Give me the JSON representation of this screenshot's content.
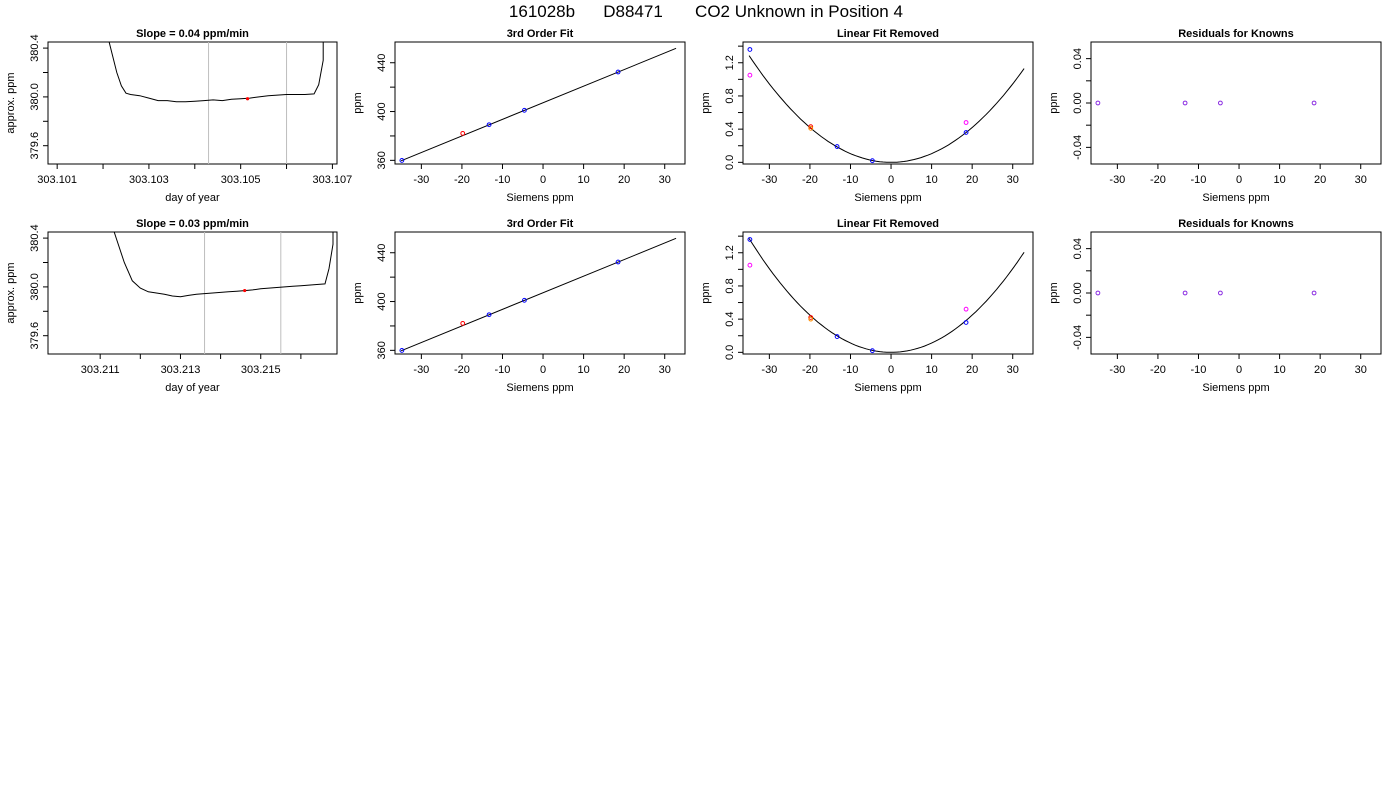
{
  "figure": {
    "title_batch": "161028b",
    "title_tank": "D88471",
    "title_desc": "CO2 Unknown in Position  4"
  },
  "colors": {
    "line": "#000000",
    "marker_red": "#ff0000",
    "marker_blue": "#0000ff",
    "marker_magenta": "#ff00ff",
    "marker_orange": "#ff8c00",
    "marker_purple": "#8a2be2",
    "vline": "#bebebe"
  },
  "chart_data": [
    {
      "type": "line",
      "title": "Slope =  0.04  ppm/min",
      "xlabel": "day of year",
      "ylabel": "approx. ppm",
      "xlim": [
        303.1008,
        303.1071
      ],
      "ylim": [
        379.45,
        380.45
      ],
      "x_ticks": [
        303.101,
        303.103,
        303.105,
        303.107
      ],
      "x_ticks_minor": [
        303.102,
        303.104,
        303.106
      ],
      "x_tick_labels": [
        "303.101",
        "303.103",
        "303.105",
        "303.107"
      ],
      "y_ticks": [
        379.6,
        380.0,
        380.4
      ],
      "y_ticks_minor": [
        379.8,
        380.2
      ],
      "y_tick_labels": [
        "379.6",
        "380.0",
        "380.4"
      ],
      "vlines": [
        303.1043,
        303.106
      ],
      "trace": [
        [
          303.1021,
          380.5
        ],
        [
          303.1022,
          380.35
        ],
        [
          303.1023,
          380.2
        ],
        [
          303.1024,
          380.09
        ],
        [
          303.1025,
          380.03
        ],
        [
          303.1026,
          380.02
        ],
        [
          303.1028,
          380.01
        ],
        [
          303.103,
          379.99
        ],
        [
          303.1032,
          379.97
        ],
        [
          303.1034,
          379.97
        ],
        [
          303.1036,
          379.96
        ],
        [
          303.1038,
          379.96
        ],
        [
          303.104,
          379.965
        ],
        [
          303.1042,
          379.97
        ],
        [
          303.1044,
          379.975
        ],
        [
          303.1046,
          379.97
        ],
        [
          303.1048,
          379.98
        ],
        [
          303.105,
          379.985
        ],
        [
          303.1052,
          379.99
        ],
        [
          303.1054,
          380.0
        ],
        [
          303.1056,
          380.01
        ],
        [
          303.1058,
          380.015
        ],
        [
          303.106,
          380.02
        ],
        [
          303.1062,
          380.02
        ],
        [
          303.1064,
          380.02
        ],
        [
          303.1066,
          380.025
        ],
        [
          303.1067,
          380.1
        ],
        [
          303.1068,
          380.3
        ],
        [
          303.1068,
          380.5
        ]
      ],
      "marker": [
        303.10515,
        379.985
      ]
    },
    {
      "type": "scatter",
      "title": "3rd Order Fit",
      "xlabel": "Siemens ppm",
      "ylabel": "ppm",
      "xlim": [
        -36.5,
        35
      ],
      "ylim": [
        357,
        457
      ],
      "x_ticks": [
        -30,
        -20,
        -10,
        0,
        10,
        20,
        30
      ],
      "y_ticks": [
        360,
        400,
        440
      ],
      "y_ticks_minor": [
        380,
        420
      ],
      "fit_line": [
        [
          -35,
          359.6
        ],
        [
          32.8,
          451.8
        ]
      ],
      "knowns": [
        {
          "x": -34.8,
          "y": 359.9
        },
        {
          "x": -13.3,
          "y": 389.2
        },
        {
          "x": -4.6,
          "y": 401.0
        },
        {
          "x": 18.5,
          "y": 432.4
        }
      ],
      "unknowns": [
        {
          "x": -19.8,
          "y": 382.1
        }
      ]
    },
    {
      "type": "scatter",
      "title": "Linear Fit Removed",
      "xlabel": "Siemens ppm",
      "ylabel": "ppm",
      "xlim": [
        -36.5,
        35
      ],
      "ylim": [
        -0.02,
        1.45
      ],
      "x_ticks": [
        -30,
        -20,
        -10,
        0,
        10,
        20,
        30
      ],
      "y_ticks": [
        0.0,
        0.4,
        0.8,
        1.2
      ],
      "y_ticks_minor": [
        0.2,
        0.6,
        1.0,
        1.4
      ],
      "y_tick_labels": [
        "0.0",
        "0.4",
        "0.8",
        "1.2"
      ],
      "curve_coeff": 0.00105,
      "curve_xrange": [
        -35,
        32.8
      ],
      "knowns_blue": [
        {
          "x": -34.8,
          "y": 1.36
        },
        {
          "x": -13.3,
          "y": 0.19
        },
        {
          "x": -4.6,
          "y": 0.02
        },
        {
          "x": 18.5,
          "y": 0.36
        }
      ],
      "knowns_magenta": [
        {
          "x": -34.8,
          "y": 1.05
        },
        {
          "x": 18.5,
          "y": 0.48
        }
      ],
      "unknowns_red": [
        {
          "x": -19.8,
          "y": 0.43
        }
      ],
      "unknowns_orange": [
        {
          "x": -19.8,
          "y": 0.41
        }
      ]
    },
    {
      "type": "scatter",
      "title": "Residuals for Knowns",
      "xlabel": "Siemens ppm",
      "ylabel": "ppm",
      "xlim": [
        -36.5,
        35
      ],
      "ylim": [
        -0.055,
        0.055
      ],
      "x_ticks": [
        -30,
        -20,
        -10,
        0,
        10,
        20,
        30
      ],
      "y_ticks": [
        -0.04,
        0.0,
        0.04
      ],
      "y_ticks_minor": [
        -0.02,
        0.02
      ],
      "y_tick_labels": [
        "-0.04",
        "0.00",
        "0.04"
      ],
      "points": [
        {
          "x": -34.8,
          "y": 0
        },
        {
          "x": -13.3,
          "y": 0
        },
        {
          "x": -4.6,
          "y": 0
        },
        {
          "x": 18.5,
          "y": 0
        }
      ]
    },
    {
      "type": "line",
      "title": "Slope =  0.03  ppm/min",
      "xlabel": "day of year",
      "ylabel": "approx. ppm",
      "xlim": [
        303.2097,
        303.2169
      ],
      "ylim": [
        379.45,
        380.45
      ],
      "x_ticks": [
        303.211,
        303.213,
        303.215
      ],
      "x_ticks_minor": [
        303.212,
        303.214,
        303.216
      ],
      "x_tick_labels": [
        "303.211",
        "303.213",
        "303.215"
      ],
      "y_ticks": [
        379.6,
        380.0,
        380.4
      ],
      "y_ticks_minor": [
        379.8,
        380.2
      ],
      "y_tick_labels": [
        "379.6",
        "380.0",
        "380.4"
      ],
      "vlines": [
        303.2136,
        303.2155
      ],
      "trace": [
        [
          303.2113,
          380.5
        ],
        [
          303.2114,
          380.4
        ],
        [
          303.2116,
          380.2
        ],
        [
          303.2118,
          380.05
        ],
        [
          303.212,
          379.99
        ],
        [
          303.2122,
          379.96
        ],
        [
          303.2124,
          379.95
        ],
        [
          303.2126,
          379.94
        ],
        [
          303.2128,
          379.925
        ],
        [
          303.213,
          379.92
        ],
        [
          303.2132,
          379.93
        ],
        [
          303.2134,
          379.94
        ],
        [
          303.2136,
          379.945
        ],
        [
          303.2138,
          379.95
        ],
        [
          303.214,
          379.955
        ],
        [
          303.2142,
          379.96
        ],
        [
          303.2144,
          379.965
        ],
        [
          303.2146,
          379.97
        ],
        [
          303.2148,
          379.975
        ],
        [
          303.215,
          379.985
        ],
        [
          303.2152,
          379.99
        ],
        [
          303.2154,
          379.995
        ],
        [
          303.2156,
          380.0
        ],
        [
          303.2158,
          380.005
        ],
        [
          303.216,
          380.01
        ],
        [
          303.2162,
          380.015
        ],
        [
          303.2164,
          380.02
        ],
        [
          303.2166,
          380.025
        ],
        [
          303.2167,
          380.15
        ],
        [
          303.2168,
          380.35
        ],
        [
          303.2168,
          380.5
        ]
      ],
      "marker": [
        303.2146,
        379.97
      ]
    },
    {
      "type": "scatter",
      "title": "3rd Order Fit",
      "xlabel": "Siemens ppm",
      "ylabel": "ppm",
      "xlim": [
        -36.5,
        35
      ],
      "ylim": [
        357,
        457
      ],
      "x_ticks": [
        -30,
        -20,
        -10,
        0,
        10,
        20,
        30
      ],
      "y_ticks": [
        360,
        400,
        440
      ],
      "y_ticks_minor": [
        380,
        420
      ],
      "fit_line": [
        [
          -35,
          359.6
        ],
        [
          32.8,
          451.8
        ]
      ],
      "knowns": [
        {
          "x": -34.8,
          "y": 359.9
        },
        {
          "x": -13.3,
          "y": 389.2
        },
        {
          "x": -4.6,
          "y": 401.0
        },
        {
          "x": 18.5,
          "y": 432.4
        }
      ],
      "unknowns": [
        {
          "x": -19.8,
          "y": 382.1
        }
      ]
    },
    {
      "type": "scatter",
      "title": "Linear Fit Removed",
      "xlabel": "Siemens ppm",
      "ylabel": "ppm",
      "xlim": [
        -36.5,
        35
      ],
      "ylim": [
        -0.02,
        1.45
      ],
      "x_ticks": [
        -30,
        -20,
        -10,
        0,
        10,
        20,
        30
      ],
      "y_ticks": [
        0.0,
        0.4,
        0.8,
        1.2
      ],
      "y_ticks_minor": [
        0.2,
        0.6,
        1.0,
        1.4
      ],
      "y_tick_labels": [
        "0.0",
        "0.4",
        "0.8",
        "1.2"
      ],
      "curve_coeff": 0.00112,
      "curve_xrange": [
        -35,
        32.8
      ],
      "knowns_blue": [
        {
          "x": -34.8,
          "y": 1.36
        },
        {
          "x": -13.3,
          "y": 0.19
        },
        {
          "x": -4.6,
          "y": 0.02
        },
        {
          "x": 18.5,
          "y": 0.36
        }
      ],
      "knowns_magenta": [
        {
          "x": -34.8,
          "y": 1.05
        },
        {
          "x": 18.5,
          "y": 0.52
        }
      ],
      "unknowns_red": [
        {
          "x": -19.8,
          "y": 0.42
        }
      ],
      "unknowns_orange": [
        {
          "x": -19.8,
          "y": 0.4
        }
      ]
    },
    {
      "type": "scatter",
      "title": "Residuals for Knowns",
      "xlabel": "Siemens ppm",
      "ylabel": "ppm",
      "xlim": [
        -36.5,
        35
      ],
      "ylim": [
        -0.055,
        0.055
      ],
      "x_ticks": [
        -30,
        -20,
        -10,
        0,
        10,
        20,
        30
      ],
      "y_ticks": [
        -0.04,
        0.0,
        0.04
      ],
      "y_ticks_minor": [
        -0.02,
        0.02
      ],
      "y_tick_labels": [
        "-0.04",
        "0.00",
        "0.04"
      ],
      "points": [
        {
          "x": -34.8,
          "y": 0
        },
        {
          "x": -13.3,
          "y": 0
        },
        {
          "x": -4.6,
          "y": 0
        },
        {
          "x": 18.5,
          "y": 0
        }
      ]
    }
  ]
}
